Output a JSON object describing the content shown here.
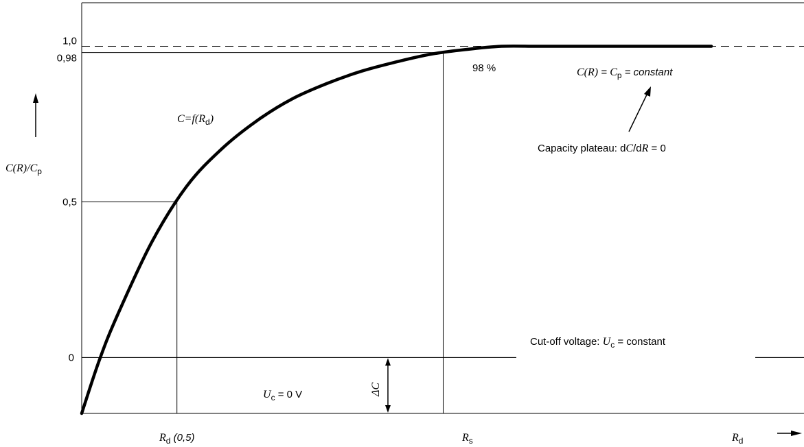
{
  "chart_data": {
    "type": "line",
    "title": "",
    "xlabel": {
      "var": "R",
      "sub": "d"
    },
    "ylabel": {
      "num": "C(R)",
      "sep": "/",
      "den": "C",
      "den_sub": "p"
    },
    "xlim": [
      0,
      1
    ],
    "ylim": [
      -0.18,
      1.14
    ],
    "yticks": [
      {
        "label": "1,0",
        "value": 1.0
      },
      {
        "label": "0,98",
        "value": 0.98
      },
      {
        "label": "0,5",
        "value": 0.5
      },
      {
        "label": "0",
        "value": 0
      }
    ],
    "xticks": [
      {
        "var": "R",
        "sub": "d",
        "suffix": " (0,5)"
      },
      {
        "var": "R",
        "sub": "s",
        "suffix": ""
      }
    ],
    "series": [
      {
        "x": [
          0,
          0.025,
          0.05,
          0.1,
          0.15,
          0.2,
          0.25,
          0.3,
          0.35,
          0.4,
          0.45,
          0.5,
          0.55,
          0.6,
          0.65,
          0.7,
          0.75,
          0.8,
          0.85,
          0.9
        ],
        "y": [
          -0.18,
          -0.01,
          0.13,
          0.37,
          0.55,
          0.67,
          0.76,
          0.83,
          0.88,
          0.92,
          0.95,
          0.975,
          0.99,
          1.0,
          1.0,
          1.0,
          1.0,
          1.0,
          1.0,
          1.0
        ]
      }
    ],
    "annotations": {
      "curve": {
        "lhs": "C",
        "eq": "=",
        "fn": "f",
        "open": "(",
        "var": "R",
        "sub": "d",
        "close": ")"
      },
      "percent": "98 %",
      "plateau_eq": {
        "lhs": "C(R)",
        "mid": " = ",
        "c": "C",
        "c_sub": "p",
        "rhs": " = constant"
      },
      "plateau_note": {
        "pre": "Capacity plateau: d",
        "c": "C",
        "slash": "/d",
        "r": "R",
        "post": " = 0"
      },
      "cutoff": {
        "pre": "Cut-off voltage: ",
        "u": "U",
        "u_sub": "c",
        "post": " = constant"
      },
      "zero_v": {
        "u": "U",
        "u_sub": "c",
        "post": " = 0 V"
      },
      "delta": "ΔC"
    }
  }
}
